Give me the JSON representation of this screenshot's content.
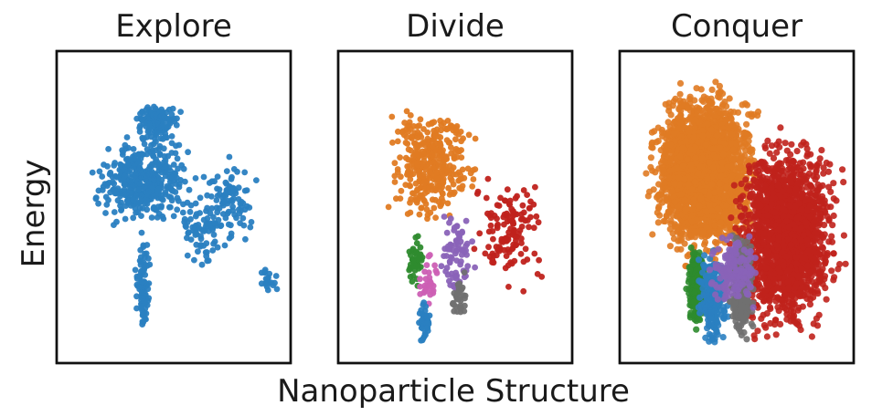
{
  "figure": {
    "xlabel": "Nanoparticle Structure",
    "ylabel": "Energy"
  },
  "chart_data": [
    {
      "type": "scatter",
      "title": "Explore",
      "xlabel": "Nanoparticle Structure",
      "ylabel": "Energy",
      "axis_ticks": false,
      "grid": false,
      "point_colors": [
        "#2a7fc1"
      ],
      "clusters": [
        {
          "color": "#2a7fc1",
          "count": 420,
          "x_range": [
            0.12,
            0.62
          ],
          "y_range": [
            0.25,
            0.58
          ]
        },
        {
          "color": "#2a7fc1",
          "count": 120,
          "x_range": [
            0.3,
            0.55
          ],
          "y_range": [
            0.15,
            0.3
          ]
        },
        {
          "color": "#2a7fc1",
          "count": 90,
          "x_range": [
            0.6,
            0.88
          ],
          "y_range": [
            0.3,
            0.65
          ]
        },
        {
          "color": "#2a7fc1",
          "count": 70,
          "x_range": [
            0.52,
            0.72
          ],
          "y_range": [
            0.45,
            0.72
          ]
        },
        {
          "color": "#2a7fc1",
          "count": 90,
          "x_range": [
            0.33,
            0.41
          ],
          "y_range": [
            0.55,
            0.96
          ]
        },
        {
          "color": "#2a7fc1",
          "count": 20,
          "x_range": [
            0.85,
            0.95
          ],
          "y_range": [
            0.68,
            0.8
          ]
        }
      ]
    },
    {
      "type": "scatter",
      "title": "Divide",
      "xlabel": "Nanoparticle Structure",
      "ylabel": "Energy",
      "axis_ticks": false,
      "grid": false,
      "point_colors": [
        "#e07b23",
        "#c0221c",
        "#2e8b2e",
        "#8a63b8",
        "#cc5fb4",
        "#707070",
        "#2a7fc1"
      ],
      "clusters": [
        {
          "color": "#e07b23",
          "count": 380,
          "x_range": [
            0.18,
            0.62
          ],
          "y_range": [
            0.15,
            0.58
          ]
        },
        {
          "color": "#c0221c",
          "count": 130,
          "x_range": [
            0.55,
            0.9
          ],
          "y_range": [
            0.35,
            0.8
          ]
        },
        {
          "color": "#2e8b2e",
          "count": 45,
          "x_range": [
            0.28,
            0.38
          ],
          "y_range": [
            0.55,
            0.78
          ]
        },
        {
          "color": "#8a63b8",
          "count": 70,
          "x_range": [
            0.42,
            0.6
          ],
          "y_range": [
            0.5,
            0.8
          ]
        },
        {
          "color": "#cc5fb4",
          "count": 30,
          "x_range": [
            0.32,
            0.46
          ],
          "y_range": [
            0.62,
            0.85
          ]
        },
        {
          "color": "#707070",
          "count": 35,
          "x_range": [
            0.48,
            0.56
          ],
          "y_range": [
            0.68,
            0.88
          ]
        },
        {
          "color": "#2a7fc1",
          "count": 40,
          "x_range": [
            0.34,
            0.4
          ],
          "y_range": [
            0.78,
            0.96
          ]
        }
      ]
    },
    {
      "type": "scatter",
      "title": "Conquer",
      "xlabel": "Nanoparticle Structure",
      "ylabel": "Energy",
      "axis_ticks": false,
      "grid": false,
      "point_colors": [
        "#e07b23",
        "#c0221c",
        "#2e8b2e",
        "#2a7fc1",
        "#707070",
        "#8a63b8"
      ],
      "clusters": [
        {
          "color": "#e07b23",
          "count": 2600,
          "x_range": [
            0.1,
            0.62
          ],
          "y_range": [
            0.08,
            0.7
          ]
        },
        {
          "color": "#c0221c",
          "count": 1700,
          "x_range": [
            0.45,
            0.98
          ],
          "y_range": [
            0.22,
            0.96
          ]
        },
        {
          "color": "#2e8b2e",
          "count": 260,
          "x_range": [
            0.28,
            0.38
          ],
          "y_range": [
            0.6,
            0.92
          ]
        },
        {
          "color": "#2a7fc1",
          "count": 260,
          "x_range": [
            0.32,
            0.48
          ],
          "y_range": [
            0.62,
            0.97
          ]
        },
        {
          "color": "#707070",
          "count": 320,
          "x_range": [
            0.46,
            0.58
          ],
          "y_range": [
            0.55,
            0.95
          ]
        },
        {
          "color": "#8a63b8",
          "count": 140,
          "x_range": [
            0.36,
            0.62
          ],
          "y_range": [
            0.55,
            0.85
          ]
        }
      ]
    }
  ]
}
